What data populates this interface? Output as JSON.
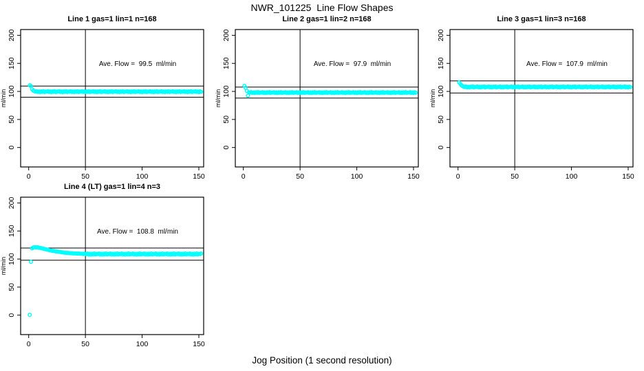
{
  "figure": {
    "title": "NWR_101225  Line Flow Shapes",
    "xlabel": "Jog Position (1 second resolution)",
    "point_color": "#00ffff",
    "line_color": "#000000",
    "background": "#ffffff"
  },
  "chart_data": [
    {
      "type": "scatter",
      "title": "Line 1 gas=1 lin=1 n=168",
      "ave_flow": 99.5,
      "ave_flow_label": "Ave. Flow =  99.5  ml/min",
      "ylabel": "ml/min",
      "x_ticks": [
        0,
        50,
        100,
        150
      ],
      "y_ticks": [
        0,
        50,
        100,
        150,
        200
      ],
      "xlim": [
        -7,
        154
      ],
      "ylim": [
        -35,
        210
      ],
      "ref_line_v": 50,
      "ref_lines_h": [
        109.5,
        89.6
      ],
      "x_start": 1,
      "x_step": 1,
      "y": [
        111,
        109.5,
        104,
        101.5,
        100.5,
        99.5,
        100.3,
        98.9,
        99.9,
        98.7,
        100.1,
        99.2,
        100.4,
        98.8,
        99.7,
        99.5,
        100.3,
        98.9,
        99.9,
        98.7,
        100.1,
        99.2,
        100.4,
        98.8,
        99.7,
        99.5,
        100.3,
        98.9,
        99.9,
        98.7,
        100.1,
        99.2,
        100.4,
        98.8,
        99.7,
        99.5,
        100.3,
        98.9,
        99.9,
        98.7,
        100.1,
        99.2,
        100.4,
        98.8,
        99.7,
        99.5,
        100.3,
        98.9,
        99.9,
        98.7,
        100.1,
        99.2,
        100.4,
        98.8,
        99.7,
        99.5,
        100.3,
        98.9,
        99.9,
        98.7,
        100.1,
        99.2,
        100.4,
        98.8,
        99.7,
        99.5,
        100.3,
        98.9,
        99.9,
        98.7,
        100.1,
        99.2,
        100.4,
        98.8,
        99.7,
        99.5,
        100.3,
        98.9,
        99.9,
        98.7,
        100.1,
        99.2,
        100.4,
        98.8,
        99.7,
        99.5,
        100.3,
        98.9,
        99.9,
        98.7,
        100.1,
        99.2,
        100.4,
        98.8,
        99.7,
        99.5,
        100.3,
        98.9,
        99.9,
        98.7,
        100.1,
        99.2,
        100.4,
        98.8,
        99.7,
        99.5,
        100.3,
        98.9,
        99.9,
        98.7,
        100.1,
        99.2,
        100.4,
        98.8,
        99.7,
        99.5,
        100.3,
        98.9,
        99.9,
        98.7,
        100.1,
        99.2,
        100.4,
        98.8,
        99.7,
        99.5,
        100.3,
        98.9,
        99.9,
        98.7,
        100.1,
        99.2,
        100.4,
        98.8,
        99.7,
        99.5,
        100.3,
        98.9,
        99.9,
        98.7,
        100.1,
        99.2,
        100.4,
        98.8,
        99.7,
        99.5,
        100.3,
        98.9,
        99.9,
        98.7,
        100.1,
        99.2
      ]
    },
    {
      "type": "scatter",
      "title": "Line 2 gas=1 lin=2 n=168",
      "ave_flow": 97.9,
      "ave_flow_label": "Ave. Flow =  97.9  ml/min",
      "ylabel": "ml/min",
      "x_ticks": [
        0,
        50,
        100,
        150
      ],
      "y_ticks": [
        0,
        50,
        100,
        150,
        200
      ],
      "xlim": [
        -7,
        154
      ],
      "ylim": [
        -35,
        210
      ],
      "ref_line_v": 50,
      "ref_lines_h": [
        107.7,
        88.1
      ],
      "x_start": 1,
      "x_step": 1,
      "y": [
        110,
        106.5,
        101,
        92.5,
        98.5,
        97.9,
        98.7,
        97.3,
        98.3,
        97.1,
        98.5,
        97.6,
        98.8,
        97.2,
        98.1,
        97.9,
        98.7,
        97.3,
        98.3,
        97.1,
        98.5,
        97.6,
        98.8,
        97.2,
        98.1,
        97.9,
        98.7,
        97.3,
        98.3,
        97.1,
        98.5,
        97.6,
        98.8,
        97.2,
        98.1,
        97.9,
        98.7,
        97.3,
        98.3,
        97.1,
        98.5,
        97.6,
        98.8,
        97.2,
        98.1,
        97.9,
        98.7,
        97.3,
        98.3,
        97.1,
        98.5,
        97.6,
        98.8,
        97.2,
        98.1,
        97.9,
        98.7,
        97.3,
        98.3,
        97.1,
        98.5,
        97.6,
        98.8,
        97.2,
        98.1,
        97.9,
        98.7,
        97.3,
        98.3,
        97.1,
        98.5,
        97.6,
        98.8,
        97.2,
        98.1,
        97.9,
        98.7,
        97.3,
        98.3,
        97.1,
        98.5,
        97.6,
        98.8,
        97.2,
        98.1,
        97.9,
        98.7,
        97.3,
        98.3,
        97.1,
        98.5,
        97.6,
        98.8,
        97.2,
        98.1,
        97.9,
        98.7,
        97.3,
        98.3,
        97.1,
        98.5,
        97.6,
        98.8,
        97.2,
        98.1,
        97.9,
        98.7,
        97.3,
        98.3,
        97.1,
        98.5,
        97.6,
        98.8,
        97.2,
        98.1,
        97.9,
        98.7,
        97.3,
        98.3,
        97.1,
        98.5,
        97.6,
        98.8,
        97.2,
        98.1,
        97.9,
        98.7,
        97.3,
        98.3,
        97.1,
        98.5,
        97.6,
        98.8,
        97.2,
        98.1,
        97.9,
        98.7,
        97.3,
        98.3,
        97.1,
        98.5,
        97.6,
        98.8,
        97.2,
        98.1,
        97.9,
        98.7,
        97.3,
        98.3,
        97.1,
        98.5,
        97.6
      ]
    },
    {
      "type": "scatter",
      "title": "Line 3 gas=1 lin=3 n=168",
      "ave_flow": 107.9,
      "ave_flow_label": "Ave. Flow =  107.9  ml/min",
      "ylabel": "ml/min",
      "x_ticks": [
        0,
        50,
        100,
        150
      ],
      "y_ticks": [
        0,
        50,
        100,
        150,
        200
      ],
      "xlim": [
        -7,
        154
      ],
      "ylim": [
        -35,
        210
      ],
      "ref_line_v": 50,
      "ref_lines_h": [
        118.7,
        97.1
      ],
      "x_start": 1,
      "x_step": 1,
      "y": [
        116,
        113.5,
        111,
        109.5,
        108.5,
        107.9,
        108.7,
        107.3,
        108.3,
        107.1,
        108.5,
        107.6,
        108.8,
        107.2,
        108.1,
        107.9,
        108.7,
        107.3,
        108.3,
        107.1,
        108.5,
        107.6,
        108.8,
        107.2,
        108.1,
        107.9,
        108.7,
        107.3,
        108.3,
        107.1,
        108.5,
        107.6,
        108.8,
        107.2,
        108.1,
        107.9,
        108.7,
        107.3,
        108.3,
        107.1,
        108.5,
        107.6,
        108.8,
        107.2,
        108.1,
        107.9,
        108.7,
        107.3,
        108.3,
        107.1,
        108.5,
        107.6,
        108.8,
        107.2,
        108.1,
        107.9,
        108.7,
        107.3,
        108.3,
        107.1,
        108.5,
        107.6,
        108.8,
        107.2,
        108.1,
        107.9,
        108.7,
        107.3,
        108.3,
        107.1,
        108.5,
        107.6,
        108.8,
        107.2,
        108.1,
        107.9,
        108.7,
        107.3,
        108.3,
        107.1,
        108.5,
        107.6,
        108.8,
        107.2,
        108.1,
        107.9,
        108.7,
        107.3,
        108.3,
        107.1,
        108.5,
        107.6,
        108.8,
        107.2,
        108.1,
        107.9,
        108.7,
        107.3,
        108.3,
        107.1,
        108.5,
        107.6,
        108.8,
        107.2,
        108.1,
        107.9,
        108.7,
        107.3,
        108.3,
        107.1,
        108.5,
        107.6,
        108.8,
        107.2,
        108.1,
        107.9,
        108.7,
        107.3,
        108.3,
        107.1,
        108.5,
        107.6,
        108.8,
        107.2,
        108.1,
        107.9,
        108.7,
        107.3,
        108.3,
        107.1,
        108.5,
        107.6,
        108.8,
        107.2,
        108.1,
        107.9,
        108.7,
        107.3,
        108.3,
        107.1,
        108.5,
        107.6,
        108.8,
        107.2,
        108.1,
        107.9,
        108.7,
        107.3,
        108.3,
        107.1,
        108.5,
        107.6
      ]
    },
    {
      "type": "scatter",
      "title": "Line 4 (LT) gas=1 lin=4 n=3",
      "ave_flow": 108.8,
      "ave_flow_label": "Ave. Flow =  108.8  ml/min",
      "ylabel": "ml/min",
      "x_ticks": [
        0,
        50,
        100,
        150
      ],
      "y_ticks": [
        0,
        50,
        100,
        150,
        200
      ],
      "xlim": [
        -7,
        154
      ],
      "ylim": [
        -35,
        210
      ],
      "ref_line_v": 50,
      "ref_lines_h": [
        119.7,
        97.9
      ],
      "x_start": 1,
      "x_step": 1,
      "y": [
        0.5,
        95.0,
        119.0,
        120.5,
        121.0,
        121.0,
        120.5,
        121.0,
        120.0,
        120.0,
        119.5,
        119.0,
        118.5,
        118.0,
        117.5,
        117.0,
        116.5,
        116.0,
        115.5,
        115.0,
        114.5,
        114.5,
        114.0,
        113.5,
        113.5,
        113.0,
        112.5,
        112.5,
        112.0,
        112.0,
        111.5,
        111.5,
        111.0,
        111.0,
        111.0,
        110.5,
        110.5,
        110.5,
        110.0,
        110.0,
        110.0,
        110.0,
        109.5,
        110.0,
        109.5,
        109.5,
        109.5,
        109.0,
        109.5,
        109.0,
        108.8,
        109.8,
        108.0,
        109.4,
        107.9,
        109.6,
        108.3,
        110.0,
        108.1,
        109.2,
        108.8,
        109.8,
        108.0,
        109.4,
        107.9,
        109.6,
        108.3,
        110.0,
        108.1,
        109.2,
        108.8,
        109.8,
        108.0,
        109.4,
        107.9,
        109.6,
        108.3,
        110.0,
        108.1,
        109.2,
        108.8,
        109.8,
        108.0,
        109.4,
        107.9,
        109.6,
        108.3,
        110.0,
        108.1,
        109.2,
        108.8,
        109.8,
        108.0,
        109.4,
        107.9,
        109.6,
        108.3,
        110.0,
        108.1,
        109.2,
        108.8,
        109.8,
        108.0,
        109.4,
        107.9,
        109.6,
        108.3,
        110.0,
        108.1,
        109.2,
        108.8,
        109.8,
        108.0,
        109.4,
        107.9,
        109.6,
        108.3,
        110.0,
        108.1,
        109.2,
        108.8,
        109.8,
        108.0,
        109.4,
        107.9,
        109.6,
        108.3,
        110.0,
        108.1,
        109.2,
        108.8,
        109.8,
        108.0,
        109.4,
        107.9,
        109.6,
        108.3,
        110.0,
        108.1,
        109.2,
        108.8,
        109.8,
        108.0,
        109.4,
        107.9,
        109.6,
        108.3,
        110.0,
        108.1,
        109.2,
        108.8,
        109.8
      ]
    }
  ]
}
